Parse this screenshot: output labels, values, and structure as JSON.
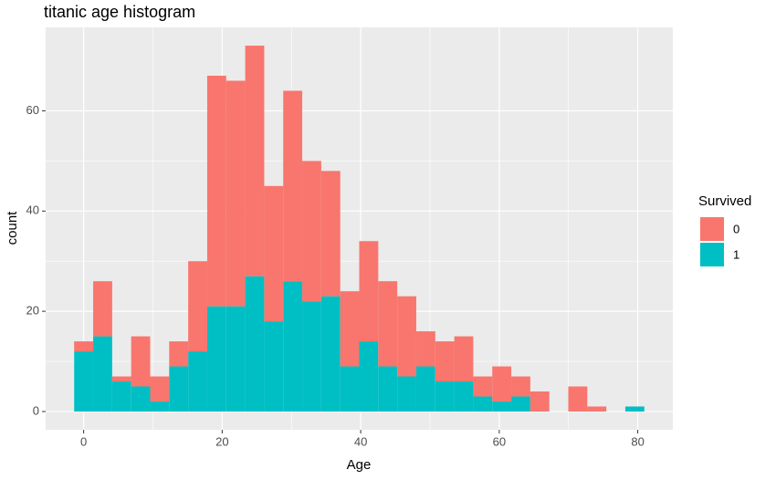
{
  "chart_data": {
    "type": "histogram",
    "title": "titanic age histogram",
    "x_label": "Age",
    "y_label": "count",
    "legend_title": "Survived",
    "legend_position": "right",
    "bins": [
      -1.372,
      1.372,
      4.116,
      6.86,
      9.604,
      12.348,
      15.092,
      17.836,
      20.58,
      23.324,
      26.068,
      28.812,
      31.556,
      34.3,
      37.044,
      39.788,
      42.532,
      45.276,
      48.02,
      50.764,
      53.508,
      56.252,
      58.996,
      61.74,
      64.484,
      67.228,
      69.972,
      72.716,
      75.46,
      78.204,
      80.948
    ],
    "series": [
      {
        "name": "0",
        "color": "#F8766D",
        "values": [
          2,
          11,
          1,
          10,
          5,
          5,
          18,
          46,
          45,
          46,
          27,
          38,
          28,
          25,
          15,
          20,
          17,
          16,
          7,
          8,
          9,
          4,
          7,
          4,
          4,
          0,
          5,
          1,
          0,
          0
        ]
      },
      {
        "name": "1",
        "color": "#00BFC4",
        "values": [
          12,
          15,
          6,
          5,
          2,
          9,
          12,
          21,
          21,
          27,
          18,
          26,
          22,
          23,
          9,
          14,
          9,
          7,
          9,
          6,
          6,
          3,
          2,
          3,
          0,
          0,
          0,
          0,
          0,
          1
        ]
      }
    ],
    "stacked": true,
    "xlim": [
      -5.488,
      85.064
    ],
    "ylim": [
      -3.65,
      76.65
    ],
    "xticks": [
      0,
      20,
      40,
      60,
      80
    ],
    "yticks": [
      0,
      20,
      40,
      60
    ],
    "grid": true
  }
}
